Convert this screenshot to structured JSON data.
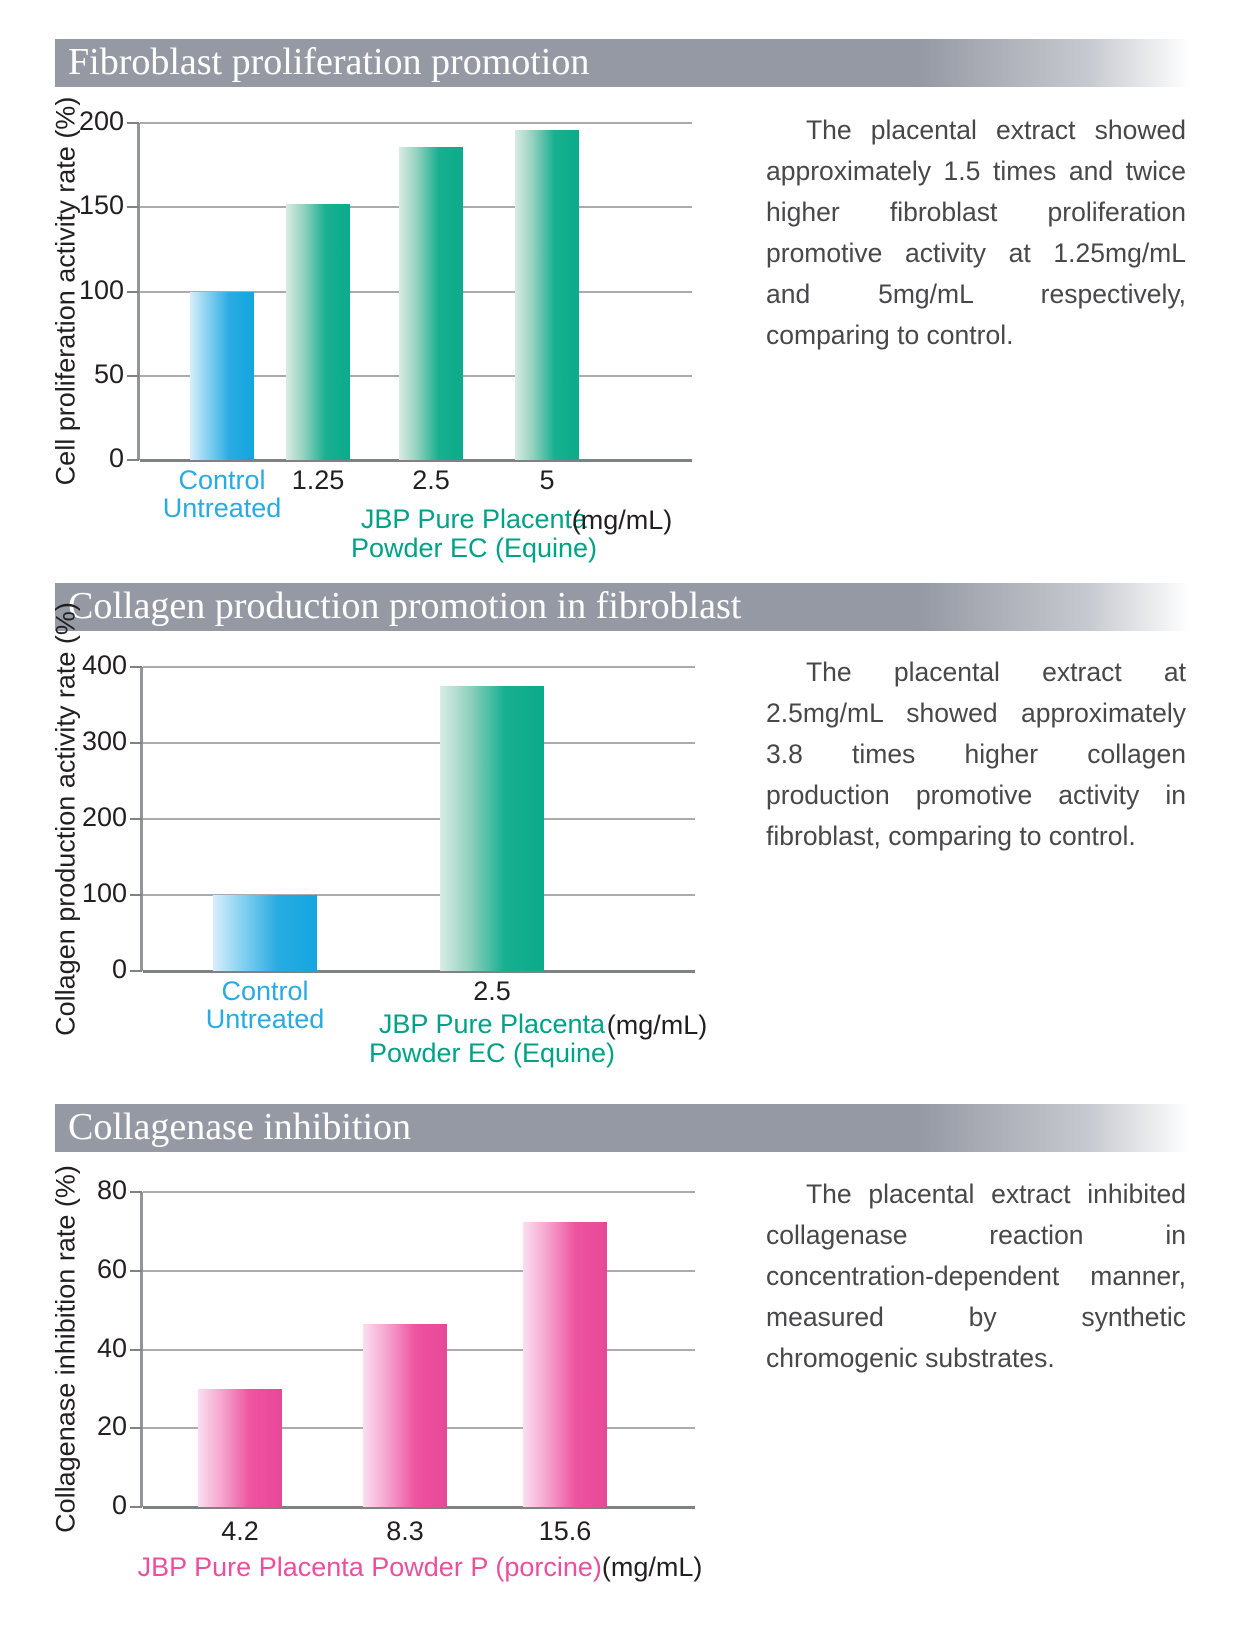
{
  "colors": {
    "header_gray": "#9599a3",
    "blue_bar": "#29abe2",
    "teal_bar": "#0fae8c",
    "pink_bar": "#ec4f9c",
    "cyan_text": "#29abe2",
    "teal_text": "#00a287",
    "pink_text": "#ec4f9e",
    "black_text": "#231f20",
    "gridline": "#a9abae"
  },
  "sections": [
    {
      "title": "Fibroblast proliferation promotion",
      "paragraph": "The placental extract showed approximately 1.5 times and twice higher fibroblast proliferation promotive activity at 1.25mg/mL and 5mg/mL respectively, comparing to control."
    },
    {
      "title": "Collagen production promotion in fibroblast",
      "paragraph": "The placental extract at 2.5mg/mL showed approximately 3.8 times higher collagen production promotive activity in fibroblast, comparing to control."
    },
    {
      "title": "Collagenase inhibition",
      "paragraph": "The placental extract inhibited collagenase reaction in concentration-dependent manner, measured by synthetic chromogenic substrates."
    }
  ],
  "chart_data": [
    {
      "type": "bar",
      "title": "Fibroblast proliferation promotion",
      "ylabel": "Cell proliferation activity rate (%)",
      "ylim": [
        0,
        200
      ],
      "yticks": [
        0,
        50,
        100,
        150,
        200
      ],
      "categories": [
        "Control\nUntreated",
        "1.25",
        "2.5",
        "5"
      ],
      "values": [
        100,
        152,
        186,
        196
      ],
      "bar_palette": [
        "blue",
        "teal",
        "teal",
        "teal"
      ],
      "category_colors": [
        "cyan",
        "black",
        "black",
        "black"
      ],
      "xlabel": "JBP Pure Placenta\nPowder EC (Equine)",
      "xlabel_color": "teal",
      "unit": "(mg/mL)",
      "grid": true,
      "legend": false
    },
    {
      "type": "bar",
      "title": "Collagen production promotion in fibroblast",
      "ylabel": "Collagen production activity rate (%)",
      "ylim": [
        0,
        400
      ],
      "yticks": [
        0,
        100,
        200,
        300,
        400
      ],
      "categories": [
        "Control\nUntreated",
        "2.5"
      ],
      "values": [
        100,
        375
      ],
      "bar_palette": [
        "blue",
        "teal"
      ],
      "category_colors": [
        "cyan",
        "black"
      ],
      "xlabel": "JBP Pure Placenta\nPowder EC (Equine)",
      "xlabel_color": "teal",
      "unit": "(mg/mL)",
      "grid": true,
      "legend": false
    },
    {
      "type": "bar",
      "title": "Collagenase inhibition",
      "ylabel": "Collagenase inhibition rate (%)",
      "ylim": [
        0,
        80
      ],
      "yticks": [
        0,
        20,
        40,
        60,
        80
      ],
      "categories": [
        "4.2",
        "8.3",
        "15.6"
      ],
      "values": [
        30,
        46.5,
        72.5
      ],
      "bar_palette": [
        "pink",
        "pink",
        "pink"
      ],
      "category_colors": [
        "black",
        "black",
        "black"
      ],
      "xlabel": "JBP Pure Placenta Powder P (porcine)",
      "xlabel_color": "pink",
      "xlabel_inline": true,
      "unit": "(mg/mL)",
      "grid": true,
      "legend": false
    }
  ]
}
